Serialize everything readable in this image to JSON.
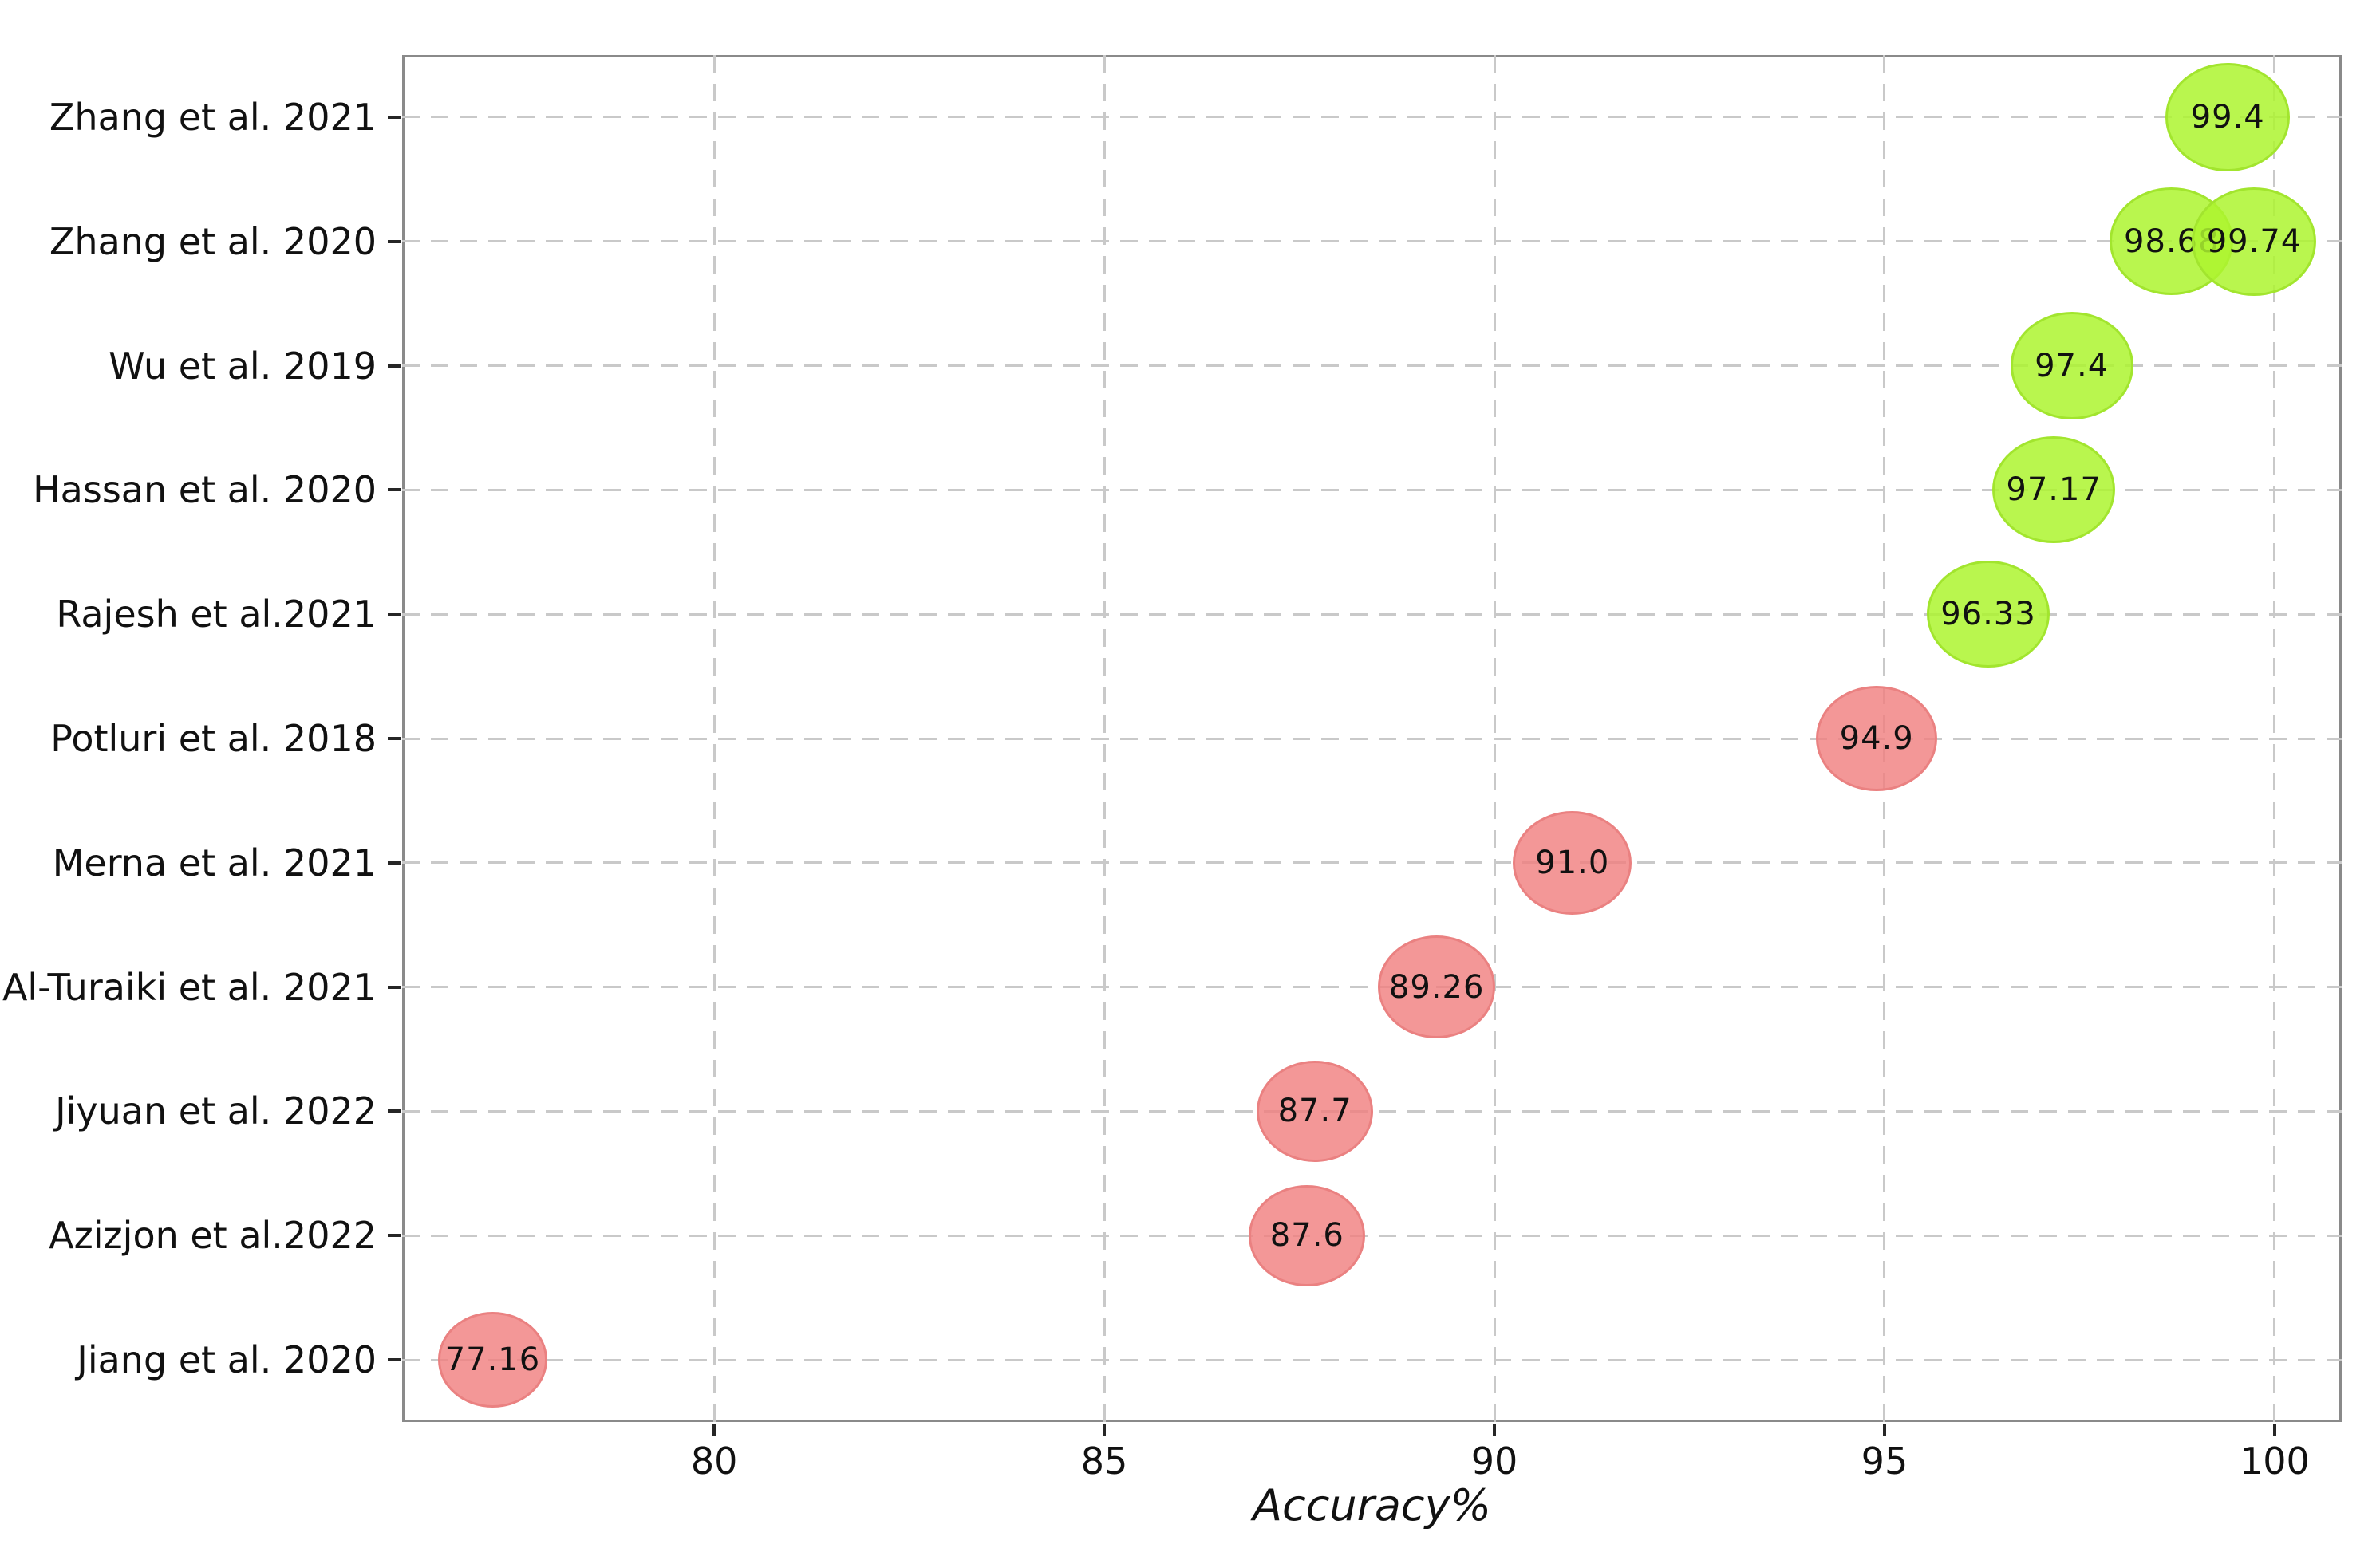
{
  "figure": {
    "background": "#ffffff"
  },
  "chart_data": {
    "type": "scatter",
    "title": "",
    "xlabel": "Accuracy%",
    "ylabel": "",
    "x_ticks": [
      "80",
      "85",
      "90",
      "95",
      "100"
    ],
    "x_tick_values": [
      80,
      85,
      90,
      95,
      100
    ],
    "xlim": [
      76.0,
      100.86
    ],
    "grid": "dashed",
    "legend": "none",
    "categories": [
      "Zhang et al. 2021",
      "Zhang et al. 2020",
      "Wu et al. 2019",
      "Hassan et al. 2020",
      "Rajesh et al.2021",
      "Potluri et al. 2018",
      "Merna et al. 2021",
      "Al-Turaiki et al. 2021",
      "Jiyuan et al. 2022",
      "Azizjon et al.2022",
      "Jiang et al. 2020"
    ],
    "points": [
      {
        "category": "Zhang et al. 2021",
        "value": 99.4,
        "label": "99.4",
        "series": "high"
      },
      {
        "category": "Zhang et al. 2020",
        "value": 98.68,
        "label": "98.68",
        "series": "high"
      },
      {
        "category": "Zhang et al. 2020",
        "value": 99.74,
        "label": "99.74",
        "series": "high"
      },
      {
        "category": "Wu et al. 2019",
        "value": 97.4,
        "label": "97.4",
        "series": "high"
      },
      {
        "category": "Hassan et al. 2020",
        "value": 97.17,
        "label": "97.17",
        "series": "high"
      },
      {
        "category": "Rajesh et al.2021",
        "value": 96.33,
        "label": "96.33",
        "series": "high"
      },
      {
        "category": "Potluri et al. 2018",
        "value": 94.9,
        "label": "94.9",
        "series": "low"
      },
      {
        "category": "Merna et al. 2021",
        "value": 91.0,
        "label": "91.0",
        "series": "low"
      },
      {
        "category": "Al-Turaiki et al. 2021",
        "value": 89.26,
        "label": "89.26",
        "series": "low"
      },
      {
        "category": "Jiyuan et al. 2022",
        "value": 87.7,
        "label": "87.7",
        "series": "low"
      },
      {
        "category": "Azizjon et al.2022",
        "value": 87.6,
        "label": "87.6",
        "series": "low"
      },
      {
        "category": "Jiang et al. 2020",
        "value": 77.16,
        "label": "77.16",
        "series": "low"
      }
    ],
    "colors": {
      "high_fill": "rgba(173,245,47,0.85)",
      "high_edge": "#a2e52e",
      "low_fill": "rgba(240,128,128,0.82)",
      "low_edge": "#ea8181",
      "grid": "#c9c9c9",
      "frame": "#8a8a8a",
      "tick": "#262626",
      "text": "#111111"
    }
  }
}
